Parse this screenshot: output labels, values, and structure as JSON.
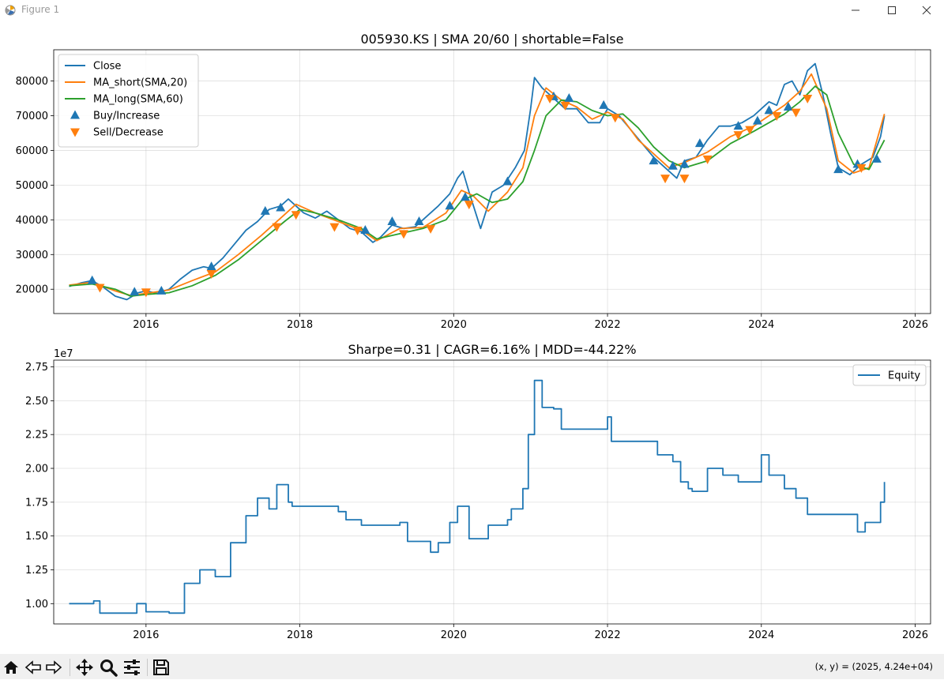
{
  "window": {
    "title": "Figure 1",
    "icon": "matplotlib-figure-icon",
    "controls": [
      "minimize-icon",
      "maximize-icon",
      "close-icon"
    ]
  },
  "toolbar": {
    "tools": [
      "home-icon",
      "back-icon",
      "forward-icon",
      "pan-icon",
      "zoom-icon",
      "subplots-config-icon",
      "save-icon"
    ],
    "coordinate_readout": "(x, y) = (2025, 4.24e+04)"
  },
  "colors": {
    "close": "#1f77b4",
    "ma_short": "#ff7f0e",
    "ma_long": "#2ca02c",
    "buy": "#1f77b4",
    "sell": "#ff7f0e",
    "equity": "#1f77b4"
  },
  "chart_data": [
    {
      "type": "line",
      "title": "005930.KS | SMA 20/60 | shortable=False",
      "xlabel": "",
      "ylabel": "",
      "xlim": [
        2014.8,
        2026.2
      ],
      "ylim": [
        13000,
        89000
      ],
      "xticks": [
        2016,
        2018,
        2020,
        2022,
        2024,
        2026
      ],
      "xtick_labels": [
        "2016",
        "2018",
        "2020",
        "2022",
        "2024",
        "2026"
      ],
      "yticks": [
        20000,
        30000,
        40000,
        50000,
        60000,
        70000,
        80000
      ],
      "ytick_labels": [
        "20000",
        "30000",
        "40000",
        "50000",
        "60000",
        "70000",
        "80000"
      ],
      "grid": true,
      "legend_position": "upper-left",
      "series": [
        {
          "name": "Close",
          "kind": "line",
          "x": [
            2015.0,
            2015.15,
            2015.3,
            2015.45,
            2015.6,
            2015.75,
            2015.9,
            2016.0,
            2016.15,
            2016.3,
            2016.45,
            2016.6,
            2016.75,
            2016.85,
            2017.0,
            2017.15,
            2017.3,
            2017.45,
            2017.6,
            2017.75,
            2017.85,
            2017.95,
            2018.05,
            2018.2,
            2018.35,
            2018.5,
            2018.65,
            2018.8,
            2018.95,
            2019.05,
            2019.2,
            2019.35,
            2019.5,
            2019.65,
            2019.8,
            2019.95,
            2020.05,
            2020.12,
            2020.2,
            2020.35,
            2020.5,
            2020.65,
            2020.8,
            2020.92,
            2021.0,
            2021.05,
            2021.15,
            2021.3,
            2021.45,
            2021.6,
            2021.75,
            2021.9,
            2022.0,
            2022.15,
            2022.3,
            2022.45,
            2022.6,
            2022.75,
            2022.9,
            2023.0,
            2023.15,
            2023.3,
            2023.45,
            2023.6,
            2023.75,
            2023.9,
            2024.0,
            2024.1,
            2024.2,
            2024.3,
            2024.4,
            2024.5,
            2024.6,
            2024.7,
            2024.8,
            2024.9,
            2025.0,
            2025.15,
            2025.3,
            2025.45,
            2025.55,
            2025.6
          ],
          "values": [
            20800,
            21800,
            22500,
            20500,
            18000,
            17000,
            19000,
            19500,
            18800,
            20000,
            23000,
            25500,
            26500,
            26000,
            29000,
            33000,
            37000,
            39500,
            43000,
            44000,
            46000,
            44000,
            42000,
            40500,
            42500,
            40000,
            37500,
            36500,
            33500,
            35000,
            38500,
            37500,
            38000,
            41000,
            44000,
            47500,
            52000,
            54000,
            48000,
            37500,
            48000,
            50000,
            55000,
            60000,
            72000,
            81000,
            78000,
            75000,
            72000,
            72000,
            68000,
            68000,
            72000,
            70000,
            66000,
            62000,
            58000,
            55000,
            52000,
            57000,
            58000,
            63000,
            67000,
            67000,
            68000,
            70000,
            72000,
            74000,
            73000,
            79000,
            80000,
            76000,
            83000,
            85000,
            76000,
            65000,
            55000,
            53000,
            56000,
            58000,
            64000,
            70000
          ]
        },
        {
          "name": "MA_short(SMA,20)",
          "kind": "line",
          "x": [
            2015.0,
            2015.3,
            2015.6,
            2015.8,
            2016.0,
            2016.3,
            2016.6,
            2016.9,
            2017.2,
            2017.5,
            2017.8,
            2017.95,
            2018.2,
            2018.5,
            2018.8,
            2019.0,
            2019.3,
            2019.6,
            2019.9,
            2020.1,
            2020.25,
            2020.45,
            2020.7,
            2020.9,
            2021.05,
            2021.2,
            2021.4,
            2021.6,
            2021.8,
            2022.0,
            2022.2,
            2022.4,
            2022.6,
            2022.8,
            2023.0,
            2023.3,
            2023.6,
            2023.9,
            2024.1,
            2024.3,
            2024.5,
            2024.65,
            2024.85,
            2025.0,
            2025.2,
            2025.4,
            2025.6
          ],
          "values": [
            21200,
            22000,
            19500,
            18200,
            18800,
            19800,
            22500,
            25000,
            30000,
            35500,
            41500,
            44500,
            42000,
            39500,
            37000,
            34000,
            37500,
            37800,
            42000,
            48500,
            47000,
            42500,
            48000,
            55000,
            70000,
            78000,
            74500,
            72500,
            69000,
            71000,
            69000,
            63000,
            59000,
            55000,
            56500,
            59500,
            64000,
            67000,
            70000,
            73000,
            77000,
            82000,
            72000,
            57000,
            53500,
            55000,
            70500
          ]
        },
        {
          "name": "MA_long(SMA,60)",
          "kind": "line",
          "x": [
            2015.0,
            2015.3,
            2015.6,
            2015.8,
            2016.0,
            2016.3,
            2016.6,
            2016.9,
            2017.2,
            2017.5,
            2017.8,
            2018.0,
            2018.2,
            2018.5,
            2018.8,
            2019.0,
            2019.3,
            2019.6,
            2019.9,
            2020.1,
            2020.3,
            2020.5,
            2020.7,
            2020.9,
            2021.05,
            2021.2,
            2021.4,
            2021.6,
            2021.8,
            2022.0,
            2022.2,
            2022.4,
            2022.6,
            2022.8,
            2023.0,
            2023.3,
            2023.6,
            2023.9,
            2024.1,
            2024.3,
            2024.5,
            2024.7,
            2024.85,
            2025.0,
            2025.2,
            2025.4,
            2025.6
          ],
          "values": [
            21000,
            21500,
            20000,
            18000,
            18500,
            19000,
            21000,
            24000,
            28500,
            34000,
            39500,
            43000,
            42000,
            40000,
            37500,
            34500,
            36000,
            37500,
            40000,
            45500,
            47500,
            45000,
            46000,
            51000,
            60000,
            70000,
            74500,
            74000,
            71500,
            70000,
            70500,
            66500,
            61000,
            57000,
            55000,
            57000,
            62000,
            65500,
            68000,
            70500,
            74000,
            78500,
            76000,
            65000,
            56000,
            54500,
            63000
          ]
        },
        {
          "name": "Buy/Increase",
          "kind": "scatter",
          "marker": "triangle-up",
          "x": [
            2015.3,
            2015.85,
            2016.2,
            2016.85,
            2017.55,
            2017.75,
            2018.85,
            2019.2,
            2019.55,
            2019.95,
            2020.15,
            2020.7,
            2021.3,
            2021.5,
            2021.95,
            2022.6,
            2022.85,
            2023.0,
            2023.2,
            2023.7,
            2023.95,
            2024.1,
            2024.35,
            2025.0,
            2025.25,
            2025.5
          ],
          "values": [
            22500,
            19200,
            19500,
            26500,
            42500,
            43500,
            37000,
            39500,
            39500,
            44000,
            46500,
            51000,
            75500,
            75000,
            73000,
            57000,
            55500,
            56000,
            62000,
            67000,
            68500,
            71500,
            72500,
            54500,
            56000,
            57500
          ]
        },
        {
          "name": "Sell/Decrease",
          "kind": "scatter",
          "marker": "triangle-down",
          "x": [
            2015.4,
            2016.0,
            2016.85,
            2017.7,
            2017.95,
            2018.45,
            2018.75,
            2019.35,
            2019.7,
            2020.2,
            2021.25,
            2021.45,
            2022.1,
            2022.75,
            2023.0,
            2023.3,
            2023.7,
            2023.85,
            2024.2,
            2024.45,
            2024.6,
            2025.3
          ],
          "values": [
            20500,
            19200,
            24500,
            38000,
            41500,
            38000,
            37000,
            36000,
            37500,
            44500,
            75000,
            73000,
            69500,
            52000,
            52000,
            57500,
            64500,
            66000,
            70000,
            71000,
            75000,
            55000
          ]
        }
      ]
    },
    {
      "type": "line",
      "title": "Sharpe=0.31 | CAGR=6.16% | MDD=-44.22%",
      "xlabel": "",
      "ylabel": "",
      "offset_label": "1e7",
      "xlim": [
        2014.8,
        2026.2
      ],
      "ylim": [
        8500000,
        28000000
      ],
      "xticks": [
        2016,
        2018,
        2020,
        2022,
        2024,
        2026
      ],
      "xtick_labels": [
        "2016",
        "2018",
        "2020",
        "2022",
        "2024",
        "2026"
      ],
      "yticks": [
        10000000,
        12500000,
        15000000,
        17500000,
        20000000,
        22500000,
        25000000,
        27500000
      ],
      "ytick_labels": [
        "1.00",
        "1.25",
        "1.50",
        "1.75",
        "2.00",
        "2.25",
        "2.50",
        "2.75"
      ],
      "grid": true,
      "legend_position": "upper-right",
      "series": [
        {
          "name": "Equity",
          "kind": "line",
          "x": [
            2015.0,
            2015.28,
            2015.32,
            2015.4,
            2015.85,
            2015.88,
            2016.0,
            2016.3,
            2016.5,
            2016.7,
            2016.9,
            2017.1,
            2017.3,
            2017.45,
            2017.6,
            2017.7,
            2017.85,
            2017.9,
            2018.4,
            2018.5,
            2018.6,
            2018.8,
            2019.2,
            2019.3,
            2019.4,
            2019.5,
            2019.7,
            2019.8,
            2019.95,
            2020.05,
            2020.2,
            2020.35,
            2020.45,
            2020.7,
            2020.75,
            2020.9,
            2020.97,
            2021.05,
            2021.15,
            2021.3,
            2021.4,
            2021.95,
            2022.0,
            2022.05,
            2022.6,
            2022.65,
            2022.85,
            2022.95,
            2023.05,
            2023.1,
            2023.3,
            2023.5,
            2023.7,
            2023.85,
            2024.0,
            2024.1,
            2024.3,
            2024.45,
            2024.5,
            2024.6,
            2024.62,
            2025.15,
            2025.25,
            2025.35,
            2025.5,
            2025.55,
            2025.6
          ],
          "values": [
            10000000,
            10000000,
            10200000,
            9300000,
            9300000,
            10000000,
            9400000,
            9300000,
            11500000,
            12500000,
            12000000,
            14500000,
            16500000,
            17800000,
            17000000,
            18800000,
            17500000,
            17200000,
            17200000,
            16800000,
            16200000,
            15800000,
            15800000,
            16000000,
            14600000,
            14600000,
            13800000,
            14500000,
            16000000,
            17200000,
            14800000,
            14800000,
            15800000,
            16200000,
            17000000,
            18500000,
            22500000,
            26500000,
            24500000,
            24400000,
            22900000,
            22900000,
            23800000,
            22000000,
            22000000,
            21000000,
            20500000,
            19000000,
            18500000,
            18300000,
            20000000,
            19500000,
            19000000,
            19000000,
            21000000,
            19500000,
            18500000,
            17800000,
            17800000,
            16600000,
            16600000,
            16600000,
            15300000,
            16000000,
            16000000,
            17500000,
            19000000
          ]
        }
      ]
    }
  ]
}
